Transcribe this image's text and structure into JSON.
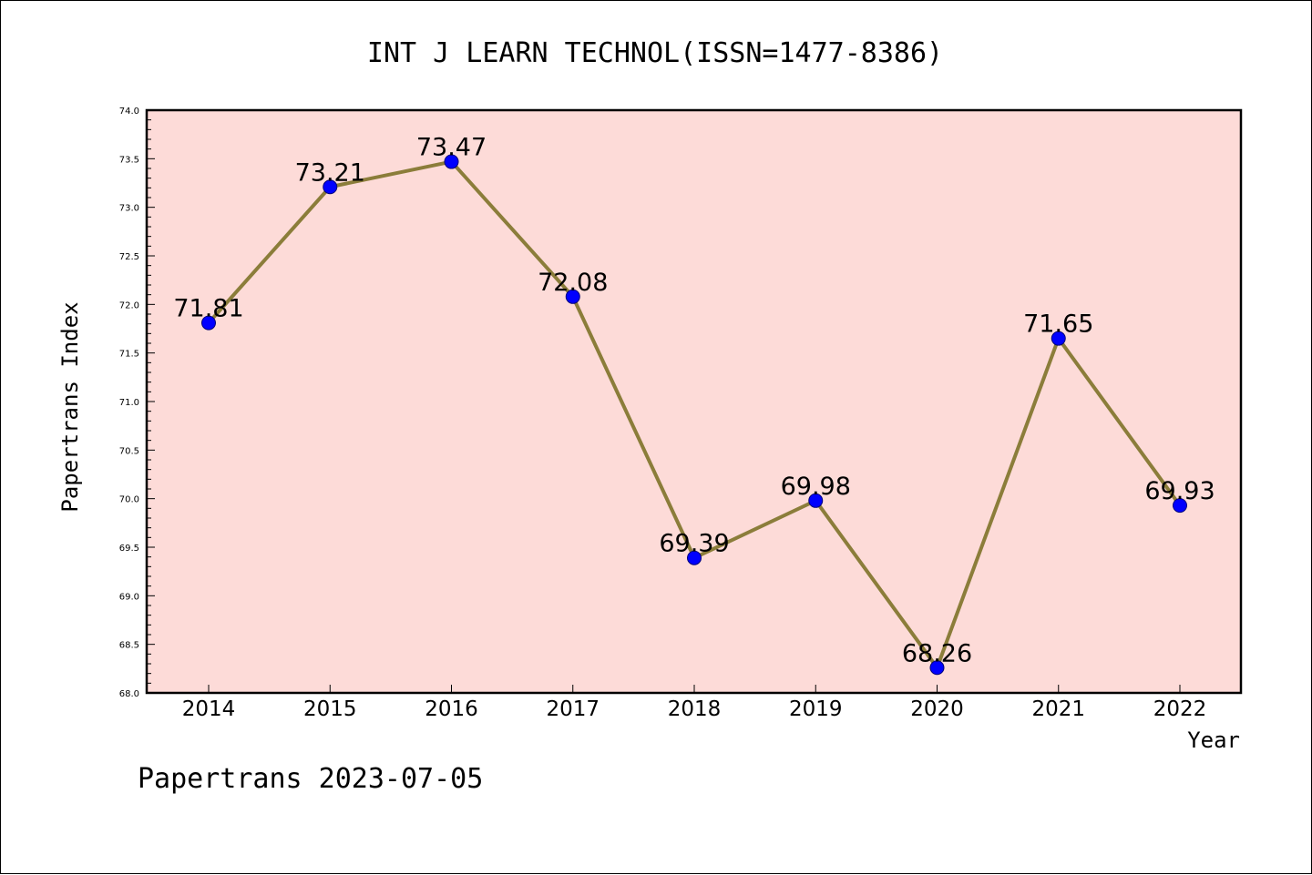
{
  "chart_data": {
    "type": "line",
    "title": "INT J LEARN TECHNOL(ISSN=1477-8386)",
    "xlabel": "Year",
    "ylabel": "Papertrans Index",
    "x": [
      "2014",
      "2015",
      "2016",
      "2017",
      "2018",
      "2019",
      "2020",
      "2021",
      "2022"
    ],
    "y": [
      71.81,
      73.21,
      73.47,
      72.08,
      69.39,
      69.98,
      68.26,
      71.65,
      69.93
    ],
    "data_labels": [
      "71.81",
      "73.21",
      "73.47",
      "72.08",
      "69.39",
      "69.98",
      "68.26",
      "71.65",
      "69.93"
    ],
    "ylim": [
      68.0,
      74.0
    ],
    "yticks": [
      "68.0",
      "68.5",
      "69.0",
      "69.5",
      "70.0",
      "70.5",
      "71.0",
      "71.5",
      "72.0",
      "72.5",
      "73.0",
      "73.5",
      "74.0"
    ],
    "grid": false,
    "colors": {
      "plot_background": "#fddbd8",
      "line": "#8b7d3a",
      "marker": "#0000ff"
    }
  },
  "footer": "Papertrans 2023-07-05"
}
